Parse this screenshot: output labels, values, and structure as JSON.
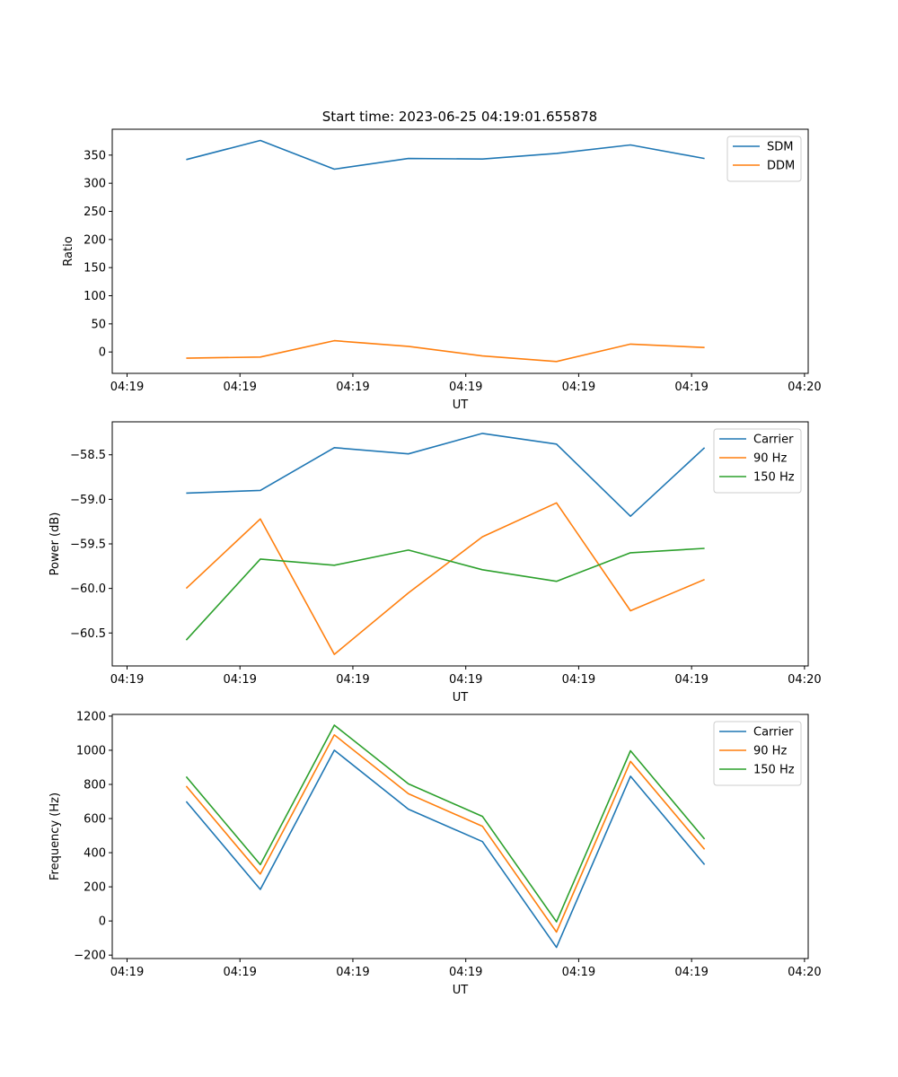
{
  "title": "Start time: 2023-06-25 04:19:01.655878",
  "colors": {
    "blue": "#1f77b4",
    "orange": "#ff7f0e",
    "green": "#2ca02c"
  },
  "chart_data": [
    {
      "type": "line",
      "title": "Start time: 2023-06-25 04:19:01.655878",
      "xlabel": "UT",
      "ylabel": "Ratio",
      "x_tick_labels": [
        "04:19",
        "04:19",
        "04:19",
        "04:19",
        "04:19",
        "04:19",
        "04:20"
      ],
      "x_ticks_sample_index": [
        -0.8,
        0.725,
        2.25,
        3.775,
        5.3,
        6.825,
        8.35
      ],
      "xlim_sample_index": [
        -1.0,
        8.4
      ],
      "yticks": [
        0,
        50,
        100,
        150,
        200,
        250,
        300,
        350
      ],
      "ylim": [
        -38,
        396
      ],
      "grid": false,
      "legend": "top-right",
      "series": [
        {
          "name": "SDM",
          "color": "blue",
          "values": [
            342,
            376,
            325,
            344,
            343,
            353,
            368,
            344
          ]
        },
        {
          "name": "DDM",
          "color": "orange",
          "values": [
            -11,
            -9,
            20,
            10,
            -7,
            -17,
            14,
            8
          ]
        }
      ]
    },
    {
      "type": "line",
      "xlabel": "UT",
      "ylabel": "Power (dB)",
      "x_tick_labels": [
        "04:19",
        "04:19",
        "04:19",
        "04:19",
        "04:19",
        "04:19",
        "04:20"
      ],
      "x_ticks_sample_index": [
        -0.8,
        0.725,
        2.25,
        3.775,
        5.3,
        6.825,
        8.35
      ],
      "xlim_sample_index": [
        -1.0,
        8.4
      ],
      "yticks": [
        -60.5,
        -60.0,
        -59.5,
        -59.0,
        -58.5
      ],
      "ytick_labels": [
        "−60.5",
        "−60.0",
        "−59.5",
        "−59.0",
        "−58.5"
      ],
      "ylim": [
        -60.87,
        -58.13
      ],
      "grid": false,
      "legend": "top-right",
      "series": [
        {
          "name": "Carrier",
          "color": "blue",
          "values": [
            -58.93,
            -58.9,
            -58.42,
            -58.49,
            -58.26,
            -58.38,
            -59.19,
            -58.42
          ]
        },
        {
          "name": "90 Hz",
          "color": "orange",
          "values": [
            -60.0,
            -59.22,
            -60.74,
            -60.05,
            -59.42,
            -59.04,
            -60.25,
            -59.9
          ]
        },
        {
          "name": "150 Hz",
          "color": "green",
          "values": [
            -60.58,
            -59.67,
            -59.74,
            -59.57,
            -59.79,
            -59.92,
            -59.6,
            -59.55
          ]
        }
      ]
    },
    {
      "type": "line",
      "xlabel": "UT",
      "ylabel": "Frequency (Hz)",
      "x_tick_labels": [
        "04:19",
        "04:19",
        "04:19",
        "04:19",
        "04:19",
        "04:19",
        "04:20"
      ],
      "x_ticks_sample_index": [
        -0.8,
        0.725,
        2.25,
        3.775,
        5.3,
        6.825,
        8.35
      ],
      "xlim_sample_index": [
        -1.0,
        8.4
      ],
      "yticks": [
        -200,
        0,
        200,
        400,
        600,
        800,
        1000,
        1200
      ],
      "ytick_labels": [
        "−200",
        "0",
        "200",
        "400",
        "600",
        "800",
        "1000",
        "1200"
      ],
      "ylim": [
        -220,
        1210
      ],
      "grid": false,
      "legend": "top-right",
      "series": [
        {
          "name": "Carrier",
          "color": "blue",
          "values": [
            700,
            185,
            1000,
            655,
            465,
            -155,
            848,
            330
          ]
        },
        {
          "name": "90 Hz",
          "color": "orange",
          "values": [
            790,
            275,
            1090,
            745,
            555,
            -65,
            935,
            420
          ]
        },
        {
          "name": "150 Hz",
          "color": "green",
          "values": [
            845,
            330,
            1147,
            803,
            613,
            -5,
            997,
            480
          ]
        }
      ]
    }
  ]
}
